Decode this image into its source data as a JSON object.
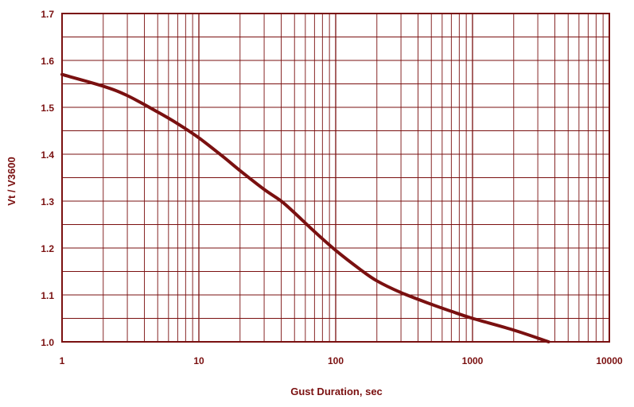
{
  "chart_data": {
    "type": "line",
    "title": "",
    "xlabel": "Gust Duration, sec",
    "ylabel": "Vt / V3600",
    "x_scale": "log",
    "xlim": [
      1,
      10000
    ],
    "ylim": [
      1.0,
      1.7
    ],
    "x_ticks": [
      1,
      10,
      100,
      1000,
      10000
    ],
    "x_tick_labels": [
      "1",
      "10",
      "100",
      "1000",
      "10000"
    ],
    "y_ticks": [
      1.0,
      1.1,
      1.2,
      1.3,
      1.4,
      1.5,
      1.6,
      1.7
    ],
    "y_tick_labels": [
      "1.0",
      "1.1",
      "1.2",
      "1.3",
      "1.4",
      "1.5",
      "1.6",
      "1.7"
    ],
    "grid": true,
    "colors": {
      "ink": "#7a1010",
      "curve": "#7a1010",
      "background": "#ffffff"
    },
    "series": [
      {
        "x": [
          1,
          2,
          3,
          5,
          7,
          10,
          15,
          20,
          30,
          40,
          50,
          70,
          100,
          150,
          200,
          300,
          500,
          700,
          1000,
          2000,
          3600
        ],
        "values": [
          1.57,
          1.545,
          1.525,
          1.49,
          1.465,
          1.435,
          1.395,
          1.365,
          1.325,
          1.3,
          1.275,
          1.235,
          1.195,
          1.155,
          1.13,
          1.105,
          1.08,
          1.065,
          1.05,
          1.025,
          1.0
        ]
      }
    ]
  }
}
